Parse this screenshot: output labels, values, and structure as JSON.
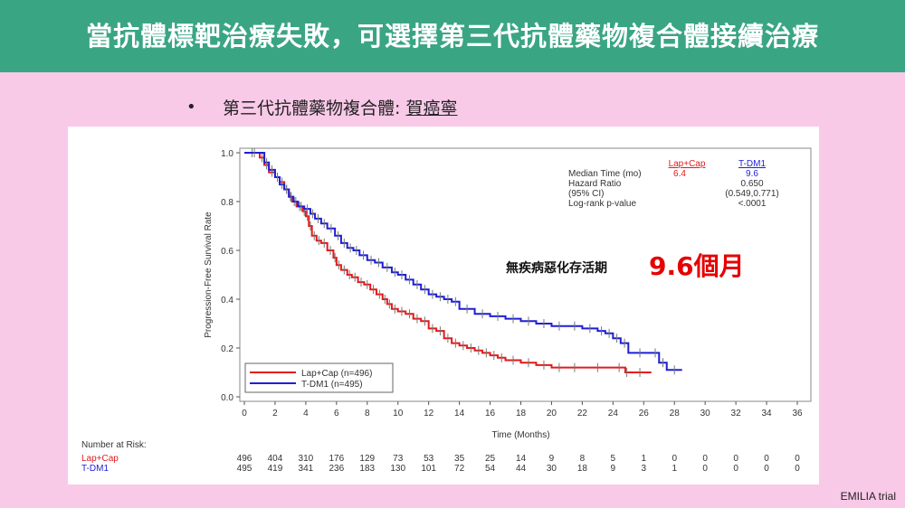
{
  "header": {
    "title": "當抗體標靶治療失敗，可選擇第三代抗體藥物複合體接續治療"
  },
  "bullet": {
    "symbol": "•",
    "prefix": "第三代抗體藥物複合體: ",
    "drug": "賀癌寧"
  },
  "callout": {
    "label": "無疾病惡化存活期",
    "value": "9.6個月",
    "color": "#e60000"
  },
  "footer": {
    "source": "EMILIA trial"
  },
  "chart_data": {
    "type": "line",
    "title": "",
    "xlabel": "Time (Months)",
    "ylabel": "Progression-Free Survival Rate",
    "xlim": [
      0,
      36
    ],
    "ylim": [
      0,
      1.0
    ],
    "xticks": [
      0,
      2,
      4,
      6,
      8,
      10,
      12,
      14,
      16,
      18,
      20,
      22,
      24,
      26,
      28,
      30,
      32,
      34,
      36
    ],
    "yticks": [
      "0.0",
      "0.2",
      "0.4",
      "0.6",
      "0.8",
      "1.0"
    ],
    "legend": {
      "placement": "bottom-left",
      "entries": [
        "Lap+Cap (n=496)",
        "T-DM1 (n=495)"
      ]
    },
    "stats": {
      "headers": [
        "Lap+Cap",
        "T-DM1"
      ],
      "rows": [
        {
          "label": "Median Time (mo)",
          "lapcap": "6.4",
          "tdm1": "9.6"
        },
        {
          "label": "Hazard Ratio",
          "lapcap": "",
          "tdm1": "0.650"
        },
        {
          "label": "(95% CI)",
          "lapcap": "",
          "tdm1": "(0.549,0.771)"
        },
        {
          "label": "Log-rank p-value",
          "lapcap": "",
          "tdm1": "<.0001"
        }
      ]
    },
    "series": [
      {
        "name": "Lap+Cap",
        "color": "#e31a1c",
        "x": [
          0,
          1,
          1.3,
          1.6,
          2,
          2.3,
          2.6,
          2.9,
          3.1,
          3.4,
          3.8,
          4,
          4.2,
          4.4,
          4.7,
          5,
          5.4,
          5.8,
          6,
          6.3,
          6.7,
          7,
          7.4,
          7.8,
          8.2,
          8.6,
          9,
          9.3,
          9.6,
          10,
          10.5,
          11,
          11.5,
          12,
          12.5,
          13,
          13.5,
          14,
          14.5,
          15,
          15.5,
          16,
          16.5,
          17,
          18,
          19,
          20,
          21,
          22,
          24,
          24.8,
          25,
          26.5
        ],
        "y": [
          1.0,
          0.98,
          0.95,
          0.92,
          0.9,
          0.88,
          0.85,
          0.82,
          0.8,
          0.78,
          0.76,
          0.74,
          0.7,
          0.66,
          0.64,
          0.63,
          0.6,
          0.57,
          0.54,
          0.52,
          0.5,
          0.49,
          0.47,
          0.46,
          0.44,
          0.42,
          0.4,
          0.38,
          0.36,
          0.35,
          0.34,
          0.32,
          0.31,
          0.28,
          0.27,
          0.24,
          0.22,
          0.21,
          0.2,
          0.19,
          0.18,
          0.17,
          0.16,
          0.15,
          0.14,
          0.13,
          0.12,
          0.12,
          0.12,
          0.12,
          0.1,
          0.1,
          0.1
        ]
      },
      {
        "name": "T-DM1",
        "color": "#1f1fd6",
        "x": [
          0,
          1.3,
          1.6,
          2,
          2.3,
          2.6,
          2.9,
          3.2,
          3.5,
          3.9,
          4.3,
          4.6,
          5,
          5.4,
          5.9,
          6.3,
          6.7,
          7.1,
          7.5,
          8,
          8.5,
          9,
          9.6,
          10,
          10.5,
          11,
          11.5,
          12,
          12.5,
          13,
          13.5,
          14,
          15,
          16,
          17,
          18,
          19,
          20,
          21,
          22,
          23,
          23.5,
          24,
          24.5,
          25,
          26.5,
          27,
          27.5,
          28.5
        ],
        "y": [
          1.0,
          0.96,
          0.93,
          0.9,
          0.87,
          0.85,
          0.82,
          0.8,
          0.78,
          0.77,
          0.75,
          0.73,
          0.71,
          0.69,
          0.66,
          0.63,
          0.61,
          0.6,
          0.58,
          0.56,
          0.55,
          0.53,
          0.51,
          0.5,
          0.48,
          0.46,
          0.44,
          0.42,
          0.41,
          0.4,
          0.39,
          0.36,
          0.34,
          0.33,
          0.32,
          0.31,
          0.3,
          0.29,
          0.29,
          0.28,
          0.27,
          0.26,
          0.24,
          0.22,
          0.18,
          0.18,
          0.14,
          0.11,
          0.11
        ]
      }
    ],
    "number_at_risk": {
      "title": "Number at Risk:",
      "rows": [
        {
          "label": "Lap+Cap",
          "color": "#e31a1c",
          "values": [
            496,
            404,
            310,
            176,
            129,
            73,
            53,
            35,
            25,
            14,
            9,
            8,
            5,
            1,
            0,
            0,
            0,
            0,
            0
          ]
        },
        {
          "label": "T-DM1",
          "color": "#1f1fd6",
          "values": [
            495,
            419,
            341,
            236,
            183,
            130,
            101,
            72,
            54,
            44,
            30,
            18,
            9,
            3,
            1,
            0,
            0,
            0,
            0
          ]
        }
      ]
    }
  }
}
